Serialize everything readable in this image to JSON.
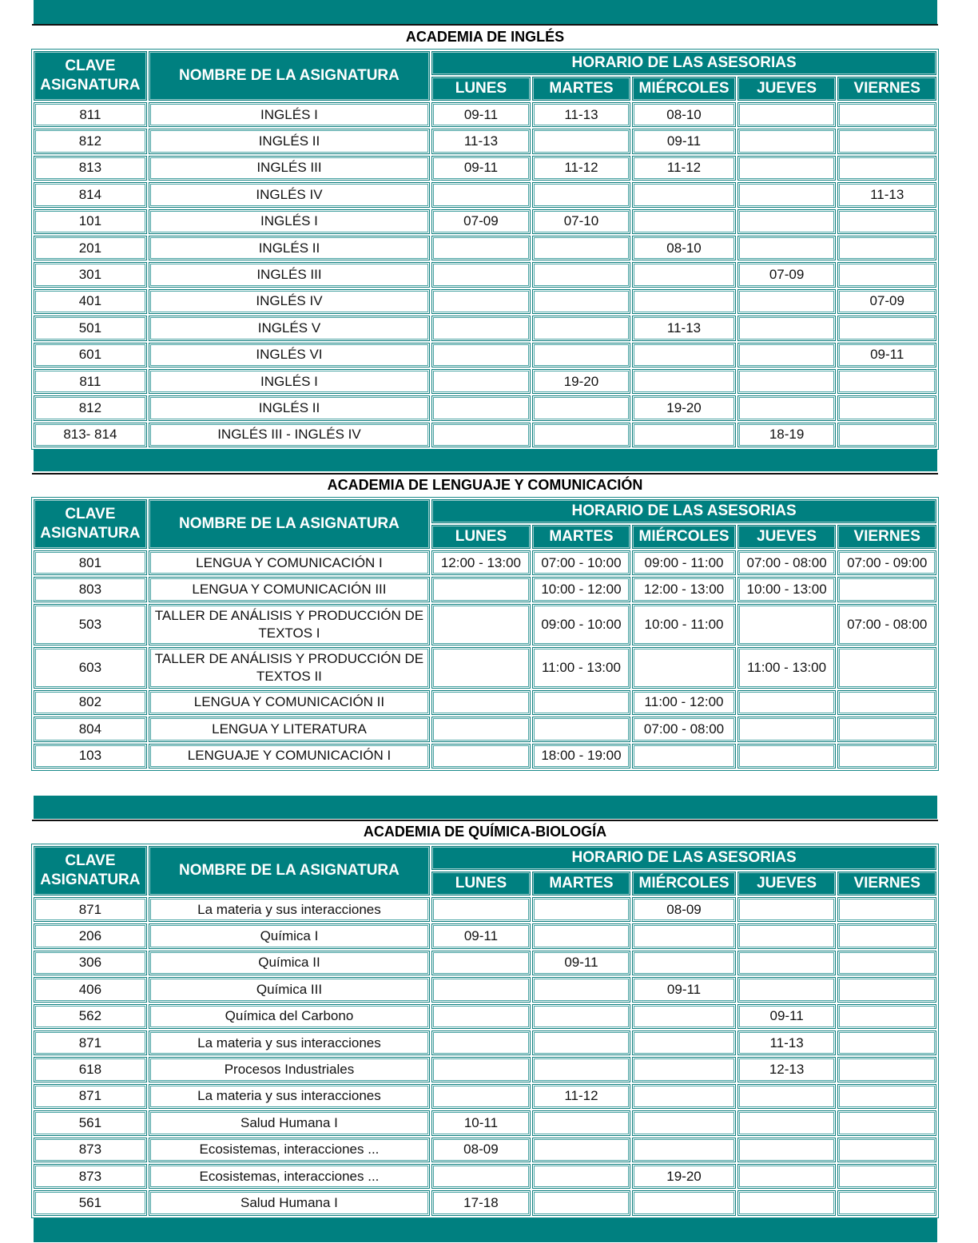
{
  "colors": {
    "accent": "#008080"
  },
  "headers": {
    "clave": "CLAVE ASIGNATURA",
    "nombre": "NOMBRE DE LA ASIGNATURA",
    "horario": "HORARIO DE LAS ASESORIAS",
    "dias": [
      "LUNES",
      "MARTES",
      "MIÉRCOLES",
      "JUEVES",
      "VIERNES"
    ]
  },
  "sections": [
    {
      "title": "ACADEMIA DE INGLÉS",
      "rows": [
        [
          "811",
          "INGLÉS I",
          "09-11",
          "11-13",
          "08-10",
          "",
          ""
        ],
        [
          "812",
          "INGLÉS II",
          "11-13",
          "",
          "09-11",
          "",
          ""
        ],
        [
          "813",
          "INGLÉS III",
          "09-11",
          "11-12",
          "11-12",
          "",
          ""
        ],
        [
          "814",
          "INGLÉS IV",
          "",
          "",
          "",
          "",
          "11-13"
        ],
        [
          "101",
          "INGLÉS I",
          "07-09",
          "07-10",
          "",
          "",
          ""
        ],
        [
          "201",
          "INGLÉS II",
          "",
          "",
          "08-10",
          "",
          ""
        ],
        [
          "301",
          "INGLÉS III",
          "",
          "",
          "",
          "07-09",
          ""
        ],
        [
          "401",
          "INGLÉS IV",
          "",
          "",
          "",
          "",
          "07-09"
        ],
        [
          "501",
          "INGLÉS V",
          "",
          "",
          "11-13",
          "",
          ""
        ],
        [
          "601",
          "INGLÉS VI",
          "",
          "",
          "",
          "",
          "09-11"
        ],
        [
          "811",
          "INGLÉS I",
          "",
          "19-20",
          "",
          "",
          ""
        ],
        [
          "812",
          "INGLÉS II",
          "",
          "",
          "19-20",
          "",
          ""
        ],
        [
          "813- 814",
          "INGLÉS III - INGLÉS IV",
          "",
          "",
          "",
          "18-19",
          ""
        ]
      ]
    },
    {
      "title": "ACADEMIA DE LENGUAJE Y COMUNICACIÓN",
      "rows": [
        [
          "801",
          "LENGUA Y COMUNICACIÓN I",
          "12:00 - 13:00",
          "07:00 - 10:00",
          "09:00 - 11:00",
          "07:00 - 08:00",
          "07:00 - 09:00"
        ],
        [
          "803",
          "LENGUA Y COMUNICACIÓN III",
          "",
          "10:00 - 12:00",
          "12:00 - 13:00",
          "10:00 - 13:00",
          ""
        ],
        [
          "503",
          "TALLER DE ANÁLISIS Y PRODUCCIÓN DE TEXTOS I",
          "",
          "09:00 - 10:00",
          "10:00 - 11:00",
          "",
          "07:00 - 08:00"
        ],
        [
          "603",
          "TALLER DE ANÁLISIS Y PRODUCCIÓN DE TEXTOS II",
          "",
          "11:00 - 13:00",
          "",
          "11:00 - 13:00",
          ""
        ],
        [
          "802",
          "LENGUA Y COMUNICACIÓN II",
          "",
          "",
          "11:00 - 12:00",
          "",
          ""
        ],
        [
          "804",
          "LENGUA Y LITERATURA",
          "",
          "",
          "07:00 - 08:00",
          "",
          ""
        ],
        [
          "103",
          "LENGUAJE Y COMUNICACIÓN I",
          "",
          "18:00 - 19:00",
          "",
          "",
          ""
        ]
      ]
    },
    {
      "title": "ACADEMIA DE QUÍMICA-BIOLOGÍA",
      "rows": [
        [
          "871",
          "La materia y sus interacciones",
          "",
          "",
          "08-09",
          "",
          ""
        ],
        [
          "206",
          "Química I",
          "09-11",
          "",
          "",
          "",
          ""
        ],
        [
          "306",
          "Química II",
          "",
          "09-11",
          "",
          "",
          ""
        ],
        [
          "406",
          "Química III",
          "",
          "",
          "09-11",
          "",
          ""
        ],
        [
          "562",
          "Química del Carbono",
          "",
          "",
          "",
          "09-11",
          ""
        ],
        [
          "871",
          "La materia y sus interacciones",
          "",
          "",
          "",
          "11-13",
          ""
        ],
        [
          "618",
          "Procesos Industriales",
          "",
          "",
          "",
          "12-13",
          ""
        ],
        [
          "871",
          "La materia y sus interacciones",
          "",
          "11-12",
          "",
          "",
          ""
        ],
        [
          "561",
          "Salud Humana I",
          "10-11",
          "",
          "",
          "",
          ""
        ],
        [
          "873",
          "Ecosistemas, interacciones ...",
          "08-09",
          "",
          "",
          "",
          ""
        ],
        [
          "873",
          "Ecosistemas, interacciones ...",
          "",
          "",
          "19-20",
          "",
          ""
        ],
        [
          "561",
          "Salud Humana I",
          "17-18",
          "",
          "",
          "",
          ""
        ]
      ]
    }
  ]
}
